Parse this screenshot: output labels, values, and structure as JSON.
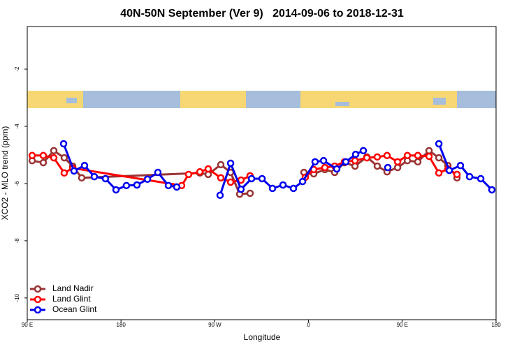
{
  "chart_data": {
    "type": "line",
    "title": "40N-50N September (Ver 9)   2014-09-06 to 2018-12-31",
    "x_label": "Longitude",
    "y_label": "XCO2 - MLO trend (ppm)",
    "xlim": [
      90,
      540
    ],
    "ylim": [
      -10.76,
      -0.51
    ],
    "xticks": [
      {
        "value": 90,
        "label": "90 E"
      },
      {
        "value": 180,
        "label": "180"
      },
      {
        "value": 270,
        "label": "90 W"
      },
      {
        "value": 360,
        "label": "0"
      },
      {
        "value": 450,
        "label": "90 E"
      },
      {
        "value": 540,
        "label": "180"
      }
    ],
    "yticks": [
      -2,
      -4,
      -6,
      -8,
      -10
    ],
    "legend": "bottom-left",
    "series": [
      {
        "name": "Land Nadir",
        "color": "#993333",
        "x": [
          94.7,
          105.4,
          115.5,
          125.5,
          133.6,
          142.3,
          255.7,
          263.7,
          275.8,
          285.2,
          293.9,
          303.9,
          null,
          355.6,
          365.0,
          375.7,
          385.1,
          394.5,
          404.6,
          416.0,
          426.0,
          435.4,
          445.5,
          454.9,
          464.9,
          475.7,
          485.1,
          493.8,
          502.5
        ],
        "values": [
          -5.2,
          -5.27,
          -4.85,
          -5.1,
          -5.39,
          -5.8,
          -5.63,
          -5.68,
          -5.34,
          -5.61,
          -6.37,
          -6.34,
          null,
          -5.61,
          -5.66,
          -5.51,
          -5.61,
          -5.27,
          -5.39,
          -5.07,
          -5.39,
          -5.59,
          -5.44,
          -5.2,
          -5.24,
          -4.85,
          -5.1,
          -5.37,
          -5.8
        ]
      },
      {
        "name": "Land Glint",
        "color": "#ff0000",
        "x": [
          94.7,
          105.4,
          115.5,
          125.5,
          133.6,
          238.2,
          244.9,
          255.7,
          263.7,
          275.8,
          285.2,
          295.2,
          303.9,
          null,
          356.9,
          365.0,
          375.7,
          385.1,
          394.5,
          404.6,
          416.0,
          426.0,
          435.4,
          445.5,
          454.9,
          464.9,
          475.7,
          485.1,
          493.8,
          502.5
        ],
        "values": [
          -5.02,
          -5.02,
          -5.1,
          -5.63,
          -5.46,
          -6.07,
          -5.68,
          -5.59,
          -5.49,
          -5.8,
          -5.95,
          -5.88,
          -5.73,
          null,
          -5.78,
          -5.51,
          -5.44,
          -5.39,
          -5.24,
          -5.2,
          -5.1,
          -5.07,
          -5.02,
          -5.24,
          -5.02,
          -5.02,
          -5.05,
          -5.63,
          -5.49,
          -5.68
        ]
      },
      {
        "name": "Ocean Glint",
        "color": "#0000ee",
        "x": [
          124.9,
          134.9,
          145.0,
          154.4,
          165.1,
          175.2,
          185.2,
          195.3,
          205.4,
          215.4,
          225.5,
          233.5,
          null,
          275.1,
          285.2,
          295.2,
          305.3,
          315.4,
          325.4,
          335.5,
          345.5,
          354.3,
          366.3,
          374.4,
          387.1,
          395.8,
          405.2,
          412.6,
          null,
          436.1,
          null,
          485.1,
          495.1,
          505.8,
          514.6,
          525.3,
          536.0
        ],
        "values": [
          -4.61,
          -5.56,
          -5.37,
          -5.76,
          -5.83,
          -6.22,
          -6.07,
          -6.05,
          -5.85,
          -5.61,
          -6.07,
          -6.12,
          null,
          -6.41,
          -5.29,
          -6.2,
          -5.83,
          -5.83,
          -6.17,
          -6.05,
          -6.17,
          -5.93,
          -5.24,
          -5.2,
          -5.49,
          -5.24,
          -4.98,
          -4.85,
          null,
          -5.44,
          null,
          -4.61,
          -5.54,
          -5.37,
          -5.76,
          -5.83,
          -6.22
        ]
      }
    ]
  }
}
